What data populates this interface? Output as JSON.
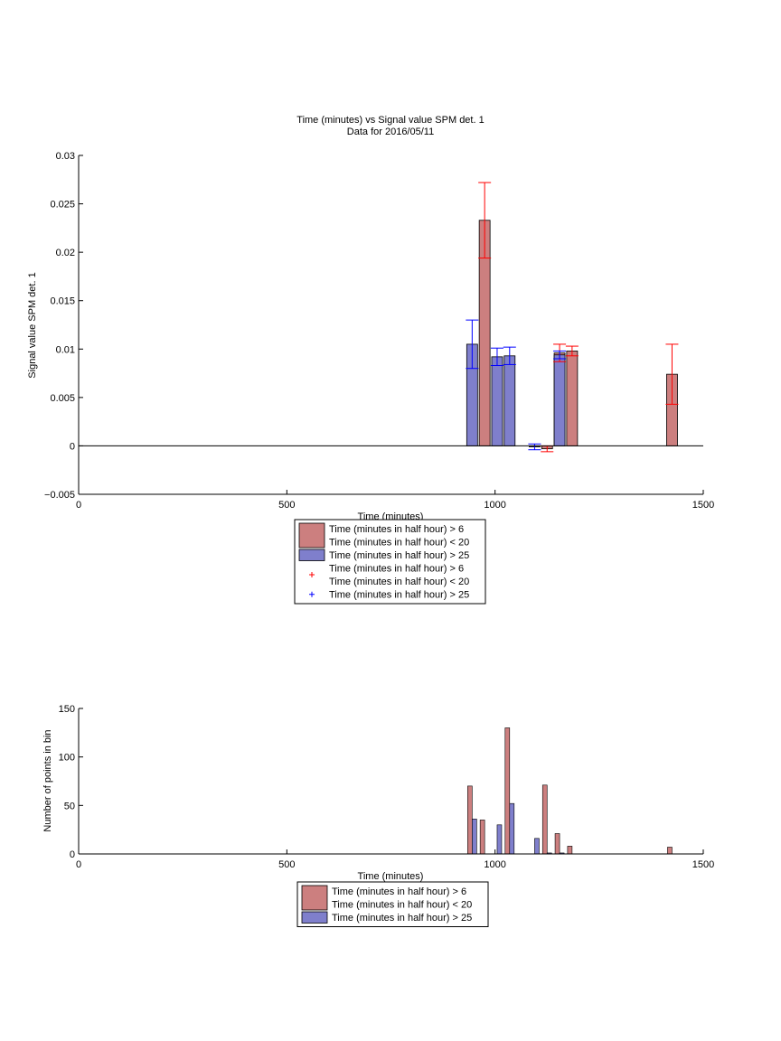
{
  "chart_data": [
    {
      "type": "bar",
      "title": "Time (minutes) vs Signal value SPM det. 1",
      "subtitle": "Data for 2016/05/11",
      "xlabel": "Time (minutes)",
      "ylabel": "Signal value SPM det. 1",
      "xlim": [
        0,
        1500
      ],
      "ylim": [
        -0.005,
        0.03
      ],
      "xticks": [
        0,
        500,
        1000,
        1500
      ],
      "xtick_labels": [
        "0",
        "500",
        "1000",
        "1500"
      ],
      "yticks": [
        -0.005,
        0,
        0.005,
        0.01,
        0.015,
        0.02,
        0.025,
        0.03
      ],
      "ytick_labels": [
        "−0.005",
        "0",
        "0.005",
        "0.01",
        "0.015",
        "0.02",
        "0.025",
        "0.03"
      ],
      "series": [
        {
          "name": "Time (minutes in half hour) > 6\nTime (minutes in half hour) < 20",
          "color": "#cc7f7f",
          "error_color": "#ff0000",
          "x": [
            975,
            1125,
            1155,
            1185,
            1425
          ],
          "values": [
            0.0233,
            -0.0003,
            0.0096,
            0.0098,
            0.0074
          ],
          "error": [
            0.0039,
            0.0003,
            0.0009,
            0.0005,
            0.0031
          ]
        },
        {
          "name": "Time (minutes in half hour) > 25",
          "color": "#7f7fcc",
          "error_color": "#0000ff",
          "x": [
            945,
            1005,
            1035,
            1095,
            1155
          ],
          "values": [
            0.0105,
            0.0092,
            0.0093,
            -0.0001,
            0.0094
          ],
          "error": [
            0.0025,
            0.0009,
            0.0009,
            0.0003,
            0.0004
          ]
        }
      ],
      "legend": {
        "placement": "below",
        "entries": [
          {
            "kind": "patch",
            "color": "#cc7f7f",
            "lines": [
              "Time (minutes in half hour) > 6",
              "Time (minutes in half hour) < 20"
            ]
          },
          {
            "kind": "patch",
            "color": "#7f7fcc",
            "lines": [
              "Time (minutes in half hour) > 25"
            ]
          },
          {
            "kind": "marker",
            "color": "#ff0000",
            "lines": [
              "Time (minutes in half hour) > 6",
              "Time (minutes in half hour) < 20"
            ]
          },
          {
            "kind": "marker",
            "color": "#0000ff",
            "lines": [
              "Time (minutes in half hour) > 25"
            ]
          }
        ]
      },
      "grid": false
    },
    {
      "type": "bar",
      "title": "",
      "xlabel": "Time (minutes)",
      "ylabel": "Number of points in bin",
      "xlim": [
        0,
        1500
      ],
      "ylim": [
        0,
        150
      ],
      "xticks": [
        0,
        500,
        1000,
        1500
      ],
      "xtick_labels": [
        "0",
        "500",
        "1000",
        "1500"
      ],
      "yticks": [
        0,
        50,
        100,
        150
      ],
      "ytick_labels": [
        "0",
        "50",
        "100",
        "150"
      ],
      "series": [
        {
          "name": "Time (minutes in half hour) > 6\nTime (minutes in half hour) < 20",
          "color": "#cc7f7f",
          "x": [
            945,
            975,
            1035,
            1125,
            1155,
            1185,
            1425
          ],
          "values": [
            70,
            35,
            130,
            71,
            21,
            8,
            7
          ]
        },
        {
          "name": "Time (minutes in half hour) > 25",
          "color": "#7f7fcc",
          "x": [
            945,
            1005,
            1035,
            1095,
            1125,
            1155
          ],
          "values": [
            36,
            30,
            52,
            16,
            1,
            1
          ]
        }
      ],
      "legend": {
        "placement": "below",
        "entries": [
          {
            "kind": "patch",
            "color": "#cc7f7f",
            "lines": [
              "Time (minutes in half hour) > 6",
              "Time (minutes in half hour) < 20"
            ]
          },
          {
            "kind": "patch",
            "color": "#7f7fcc",
            "lines": [
              "Time (minutes in half hour) > 25"
            ]
          }
        ]
      },
      "grid": false
    }
  ]
}
